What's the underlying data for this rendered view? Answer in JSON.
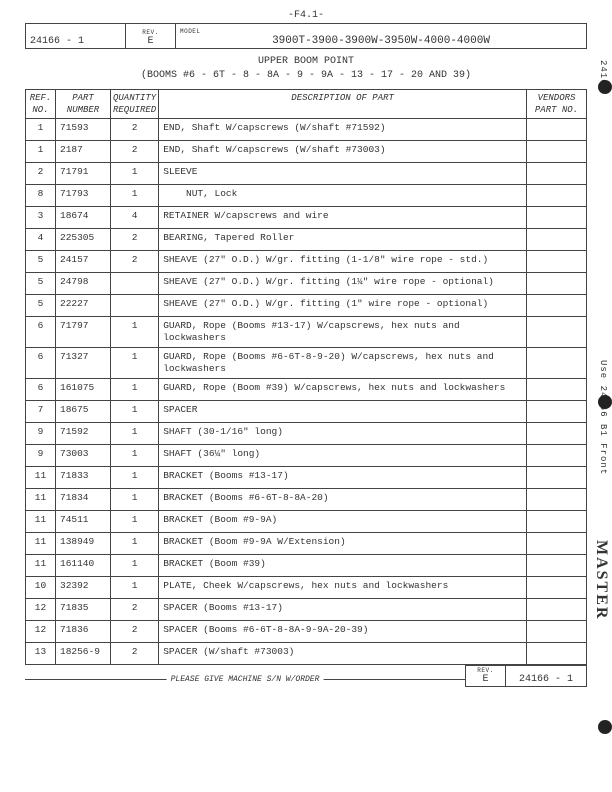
{
  "page_code_top": "-F4.1-",
  "header": {
    "doc_number": "24166 - 1",
    "rev_label": "REV.",
    "rev": "E",
    "model_label": "MODEL",
    "model": "3900T-3900-3900W-3950W-4000-4000W"
  },
  "title_line1": "UPPER BOOM POINT",
  "title_line2": "(BOOMS #6 - 6T - 8 - 8A - 9 - 9A - 13 - 17 - 20 AND 39)",
  "columns": {
    "ref": "REF. NO.",
    "part": "PART NUMBER",
    "qty": "QUANTITY REQUIRED",
    "desc": "DESCRIPTION OF PART",
    "vend": "VENDORS PART NO."
  },
  "rows": [
    {
      "ref": "1",
      "part": "71593",
      "qty": "2",
      "desc": "END, Shaft W/capscrews (W/shaft #71592)",
      "vend": ""
    },
    {
      "ref": "1",
      "part": "2187",
      "qty": "2",
      "desc": "END, Shaft W/capscrews (W/shaft #73003)",
      "vend": ""
    },
    {
      "ref": "2",
      "part": "71791",
      "qty": "1",
      "desc": "SLEEVE",
      "vend": ""
    },
    {
      "ref": "8",
      "part": "71793",
      "qty": "1",
      "desc": "    NUT, Lock",
      "vend": ""
    },
    {
      "ref": "3",
      "part": "18674",
      "qty": "4",
      "desc": "RETAINER W/capscrews and wire",
      "vend": ""
    },
    {
      "ref": "4",
      "part": "225305",
      "qty": "2",
      "desc": "BEARING, Tapered Roller",
      "vend": ""
    },
    {
      "ref": "5",
      "part": "24157",
      "qty": "2",
      "desc": "SHEAVE (27\" O.D.) W/gr. fitting (1-1/8\" wire rope - std.)",
      "vend": ""
    },
    {
      "ref": "5",
      "part": "24798",
      "qty": "",
      "desc": "SHEAVE (27\" O.D.) W/gr. fitting (1¼\" wire rope - optional)",
      "vend": ""
    },
    {
      "ref": "5",
      "part": "22227",
      "qty": "",
      "desc": "SHEAVE (27\" O.D.) W/gr. fitting (1\" wire rope - optional)",
      "vend": ""
    },
    {
      "ref": "6",
      "part": "71797",
      "qty": "1",
      "desc": "GUARD, Rope (Booms #13-17) W/capscrews, hex nuts and lockwashers",
      "vend": ""
    },
    {
      "ref": "6",
      "part": "71327",
      "qty": "1",
      "desc": "GUARD, Rope (Booms #6-6T-8-9-20) W/capscrews, hex nuts and lockwashers",
      "vend": ""
    },
    {
      "ref": "6",
      "part": "161075",
      "qty": "1",
      "desc": "GUARD, Rope (Boom #39) W/capscrews, hex nuts and lockwashers",
      "vend": ""
    },
    {
      "ref": "7",
      "part": "18675",
      "qty": "1",
      "desc": "SPACER",
      "vend": ""
    },
    {
      "ref": "9",
      "part": "71592",
      "qty": "1",
      "desc": "SHAFT (30-1/16\" long)",
      "vend": ""
    },
    {
      "ref": "9",
      "part": "73003",
      "qty": "1",
      "desc": "SHAFT (36¼\" long)",
      "vend": ""
    },
    {
      "ref": "11",
      "part": "71833",
      "qty": "1",
      "desc": "BRACKET (Booms #13-17)",
      "vend": ""
    },
    {
      "ref": "11",
      "part": "71834",
      "qty": "1",
      "desc": "BRACKET (Booms #6-6T-8-8A-20)",
      "vend": ""
    },
    {
      "ref": "11",
      "part": "74511",
      "qty": "1",
      "desc": "BRACKET (Boom #9-9A)",
      "vend": ""
    },
    {
      "ref": "11",
      "part": "138949",
      "qty": "1",
      "desc": "BRACKET (Boom #9-9A W/Extension)",
      "vend": ""
    },
    {
      "ref": "11",
      "part": "161140",
      "qty": "1",
      "desc": "BRACKET (Boom #39)",
      "vend": ""
    },
    {
      "ref": "10",
      "part": "32392",
      "qty": "1",
      "desc": "PLATE, Cheek W/capscrews, hex nuts and lockwashers",
      "vend": ""
    },
    {
      "ref": "12",
      "part": "71835",
      "qty": "2",
      "desc": "SPACER (Booms #13-17)",
      "vend": ""
    },
    {
      "ref": "12",
      "part": "71836",
      "qty": "2",
      "desc": "SPACER (Booms #6-6T-8-8A-9-9A-20-39)",
      "vend": ""
    },
    {
      "ref": "13",
      "part": "18256-9",
      "qty": "2",
      "desc": "SPACER (W/shaft #73003)",
      "vend": ""
    }
  ],
  "bottom": {
    "order_text": "PLEASE GIVE MACHINE S/N W/ORDER",
    "rev_label": "REV.",
    "rev": "E",
    "doc": "24166 - 1"
  },
  "side": {
    "label1": "24166",
    "label2": "Use 24166 B1 Front",
    "master": "MASTER"
  }
}
